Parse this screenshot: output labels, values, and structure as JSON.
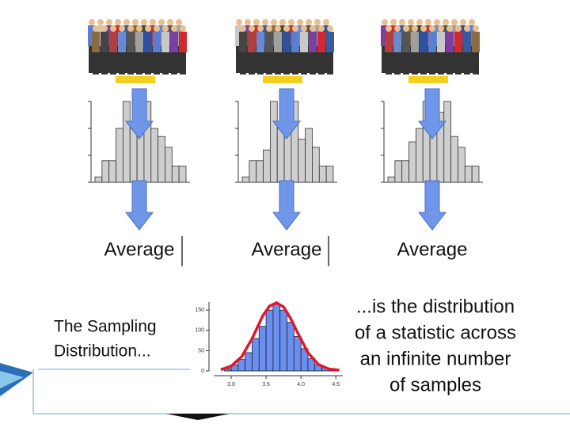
{
  "columns": [
    {
      "label": "Average"
    },
    {
      "label": "Average"
    },
    {
      "label": "Average"
    }
  ],
  "sample_histograms": [
    {
      "values": [
        0.2,
        0.8,
        0.8,
        2,
        3,
        2,
        2.6,
        3,
        2,
        1.7,
        1.3,
        0.6,
        0.6
      ]
    },
    {
      "values": [
        0.2,
        0.8,
        0.8,
        1.2,
        3,
        2,
        2.6,
        3,
        1.6,
        2,
        1.3,
        0.6,
        0.6
      ]
    },
    {
      "values": [
        0.2,
        0.8,
        0.8,
        1.5,
        2,
        3,
        2,
        2.6,
        3,
        1.7,
        1.3,
        0.6,
        0.6
      ]
    }
  ],
  "left_text": [
    "The Sampling",
    "Distribution..."
  ],
  "right_text": [
    "...is the distribution",
    "of a statistic across",
    "an infinite number",
    "of samples"
  ],
  "sampling_distribution": {
    "type": "histogram",
    "bins": [
      2.9,
      3.0,
      3.1,
      3.2,
      3.3,
      3.4,
      3.5,
      3.6,
      3.7,
      3.8,
      3.9,
      4.0,
      4.1,
      4.2,
      4.3,
      4.4,
      4.5
    ],
    "counts": [
      5,
      15,
      28,
      45,
      80,
      110,
      150,
      165,
      150,
      120,
      85,
      55,
      30,
      15,
      8,
      3
    ],
    "color": "#6a8ff0",
    "curve": {
      "color": "#e0182f",
      "x": [
        2.85,
        3.0,
        3.15,
        3.3,
        3.45,
        3.55,
        3.65,
        3.75,
        3.85,
        3.95,
        4.1,
        4.25,
        4.4,
        4.55
      ],
      "y": [
        3,
        12,
        35,
        80,
        135,
        160,
        168,
        158,
        130,
        95,
        45,
        16,
        5,
        2
      ]
    },
    "xlim": [
      2.75,
      4.6
    ],
    "ylim": [
      0,
      170
    ],
    "xticks": [
      {
        "value": 3,
        "label": "3.0"
      },
      3.5,
      {
        "value": 4,
        "label": "4.0"
      },
      4.5
    ],
    "yticks": [
      0,
      50,
      100,
      150
    ]
  }
}
